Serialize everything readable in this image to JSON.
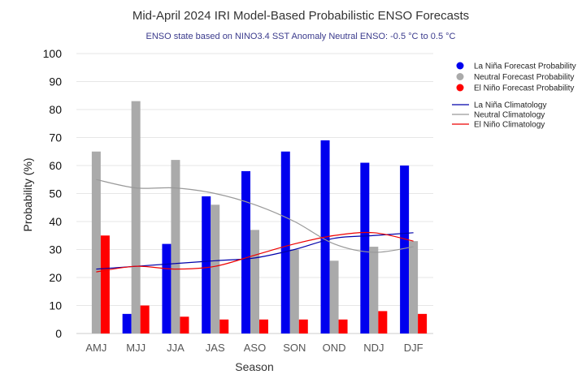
{
  "chart_data": {
    "type": "bar",
    "title": "Mid-April 2024 IRI Model-Based Probabilistic ENSO Forecasts",
    "subtitle": "ENSO state based on NINO3.4 SST Anomaly Neutral ENSO: -0.5 °C to 0.5 °C",
    "xlabel": "Season",
    "ylabel": "Probability (%)",
    "ylim": [
      0,
      100
    ],
    "yticks": [
      0,
      10,
      20,
      30,
      40,
      50,
      60,
      70,
      80,
      90,
      100
    ],
    "grid": true,
    "legend_position": "top-right",
    "categories": [
      "AMJ",
      "MJJ",
      "JJA",
      "JAS",
      "ASO",
      "SON",
      "OND",
      "NDJ",
      "DJF"
    ],
    "series": [
      {
        "name": "La Niña Forecast Probability",
        "color": "#0000ee",
        "values": [
          0,
          7,
          32,
          49,
          58,
          65,
          69,
          61,
          60
        ]
      },
      {
        "name": "Neutral Forecast Probability",
        "color": "#aaaaaa",
        "values": [
          65,
          83,
          62,
          46,
          37,
          30,
          26,
          31,
          33
        ]
      },
      {
        "name": "El Niño Forecast Probability",
        "color": "#ff0000",
        "values": [
          35,
          10,
          6,
          5,
          5,
          5,
          5,
          8,
          7
        ]
      }
    ],
    "lines": [
      {
        "name": "La Niña Climatology",
        "color": "#0000aa",
        "values": [
          23,
          24,
          25,
          26,
          27,
          30,
          34,
          35,
          36
        ]
      },
      {
        "name": "Neutral Climatology",
        "color": "#999999",
        "values": [
          55,
          52,
          52,
          50,
          46,
          40,
          32,
          29,
          31
        ]
      },
      {
        "name": "El Niño Climatology",
        "color": "#ee0000",
        "values": [
          22,
          24,
          23,
          24,
          28,
          32,
          35,
          36,
          33
        ]
      }
    ]
  }
}
